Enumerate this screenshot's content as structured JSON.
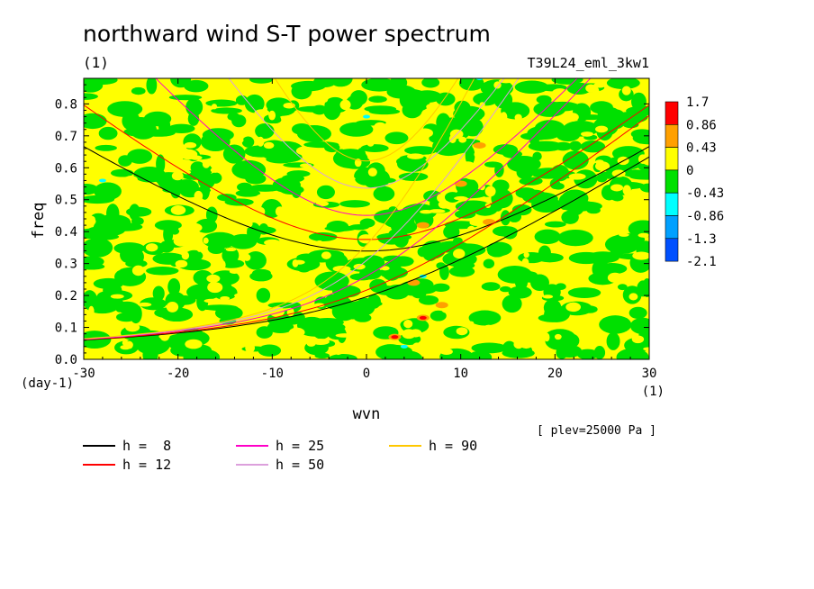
{
  "chart_data": {
    "type": "heatmap",
    "title": "northward wind S-T power spectrum",
    "subtitle_left": "(1)",
    "subtitle_right": "T39L24_eml_3kw1",
    "xlabel": "wvn",
    "x_unit": "(1)",
    "ylabel": "freq",
    "y_unit": "(day-1)",
    "xlim": [
      -30,
      30
    ],
    "ylim": [
      0,
      0.88
    ],
    "x_ticks": [
      -30,
      -20,
      -10,
      0,
      10,
      20,
      30
    ],
    "y_ticks": [
      0.0,
      0.1,
      0.2,
      0.3,
      0.4,
      0.5,
      0.6,
      0.7,
      0.8
    ],
    "x_tick_labels": [
      "-30",
      "-20",
      "-10",
      "0",
      "10",
      "20",
      "30"
    ],
    "y_tick_labels": [
      "0.0",
      "0.1",
      "0.2",
      "0.3",
      "0.4",
      "0.5",
      "0.6",
      "0.7",
      "0.8"
    ],
    "annotation": "[ plev=25000 Pa ]",
    "colorbar": {
      "labels": [
        "1.7",
        "0.86",
        "0.43",
        "0",
        "-0.43",
        "-0.86",
        "-1.3",
        "-2.1"
      ],
      "colors": [
        "#ff0000",
        "#ffa000",
        "#ffff00",
        "#00e000",
        "#00ffff",
        "#00a0ff",
        "#0050ff"
      ]
    },
    "field_note": "noisy field dominated by yellow (0 to 0.43) and green (-0.43 to 0), with a few orange/red spots near wvn 3-13",
    "dispersion_curves": [
      {
        "name": "h =  8",
        "color": "#000000",
        "h": 8
      },
      {
        "name": "h = 12",
        "color": "#ff0000",
        "h": 12
      },
      {
        "name": "h = 25",
        "color": "#ff00c8",
        "h": 25
      },
      {
        "name": "h = 50",
        "color": "#dca0dc",
        "h": 50
      },
      {
        "name": "h = 90",
        "color": "#ffc800",
        "h": 90
      }
    ]
  }
}
